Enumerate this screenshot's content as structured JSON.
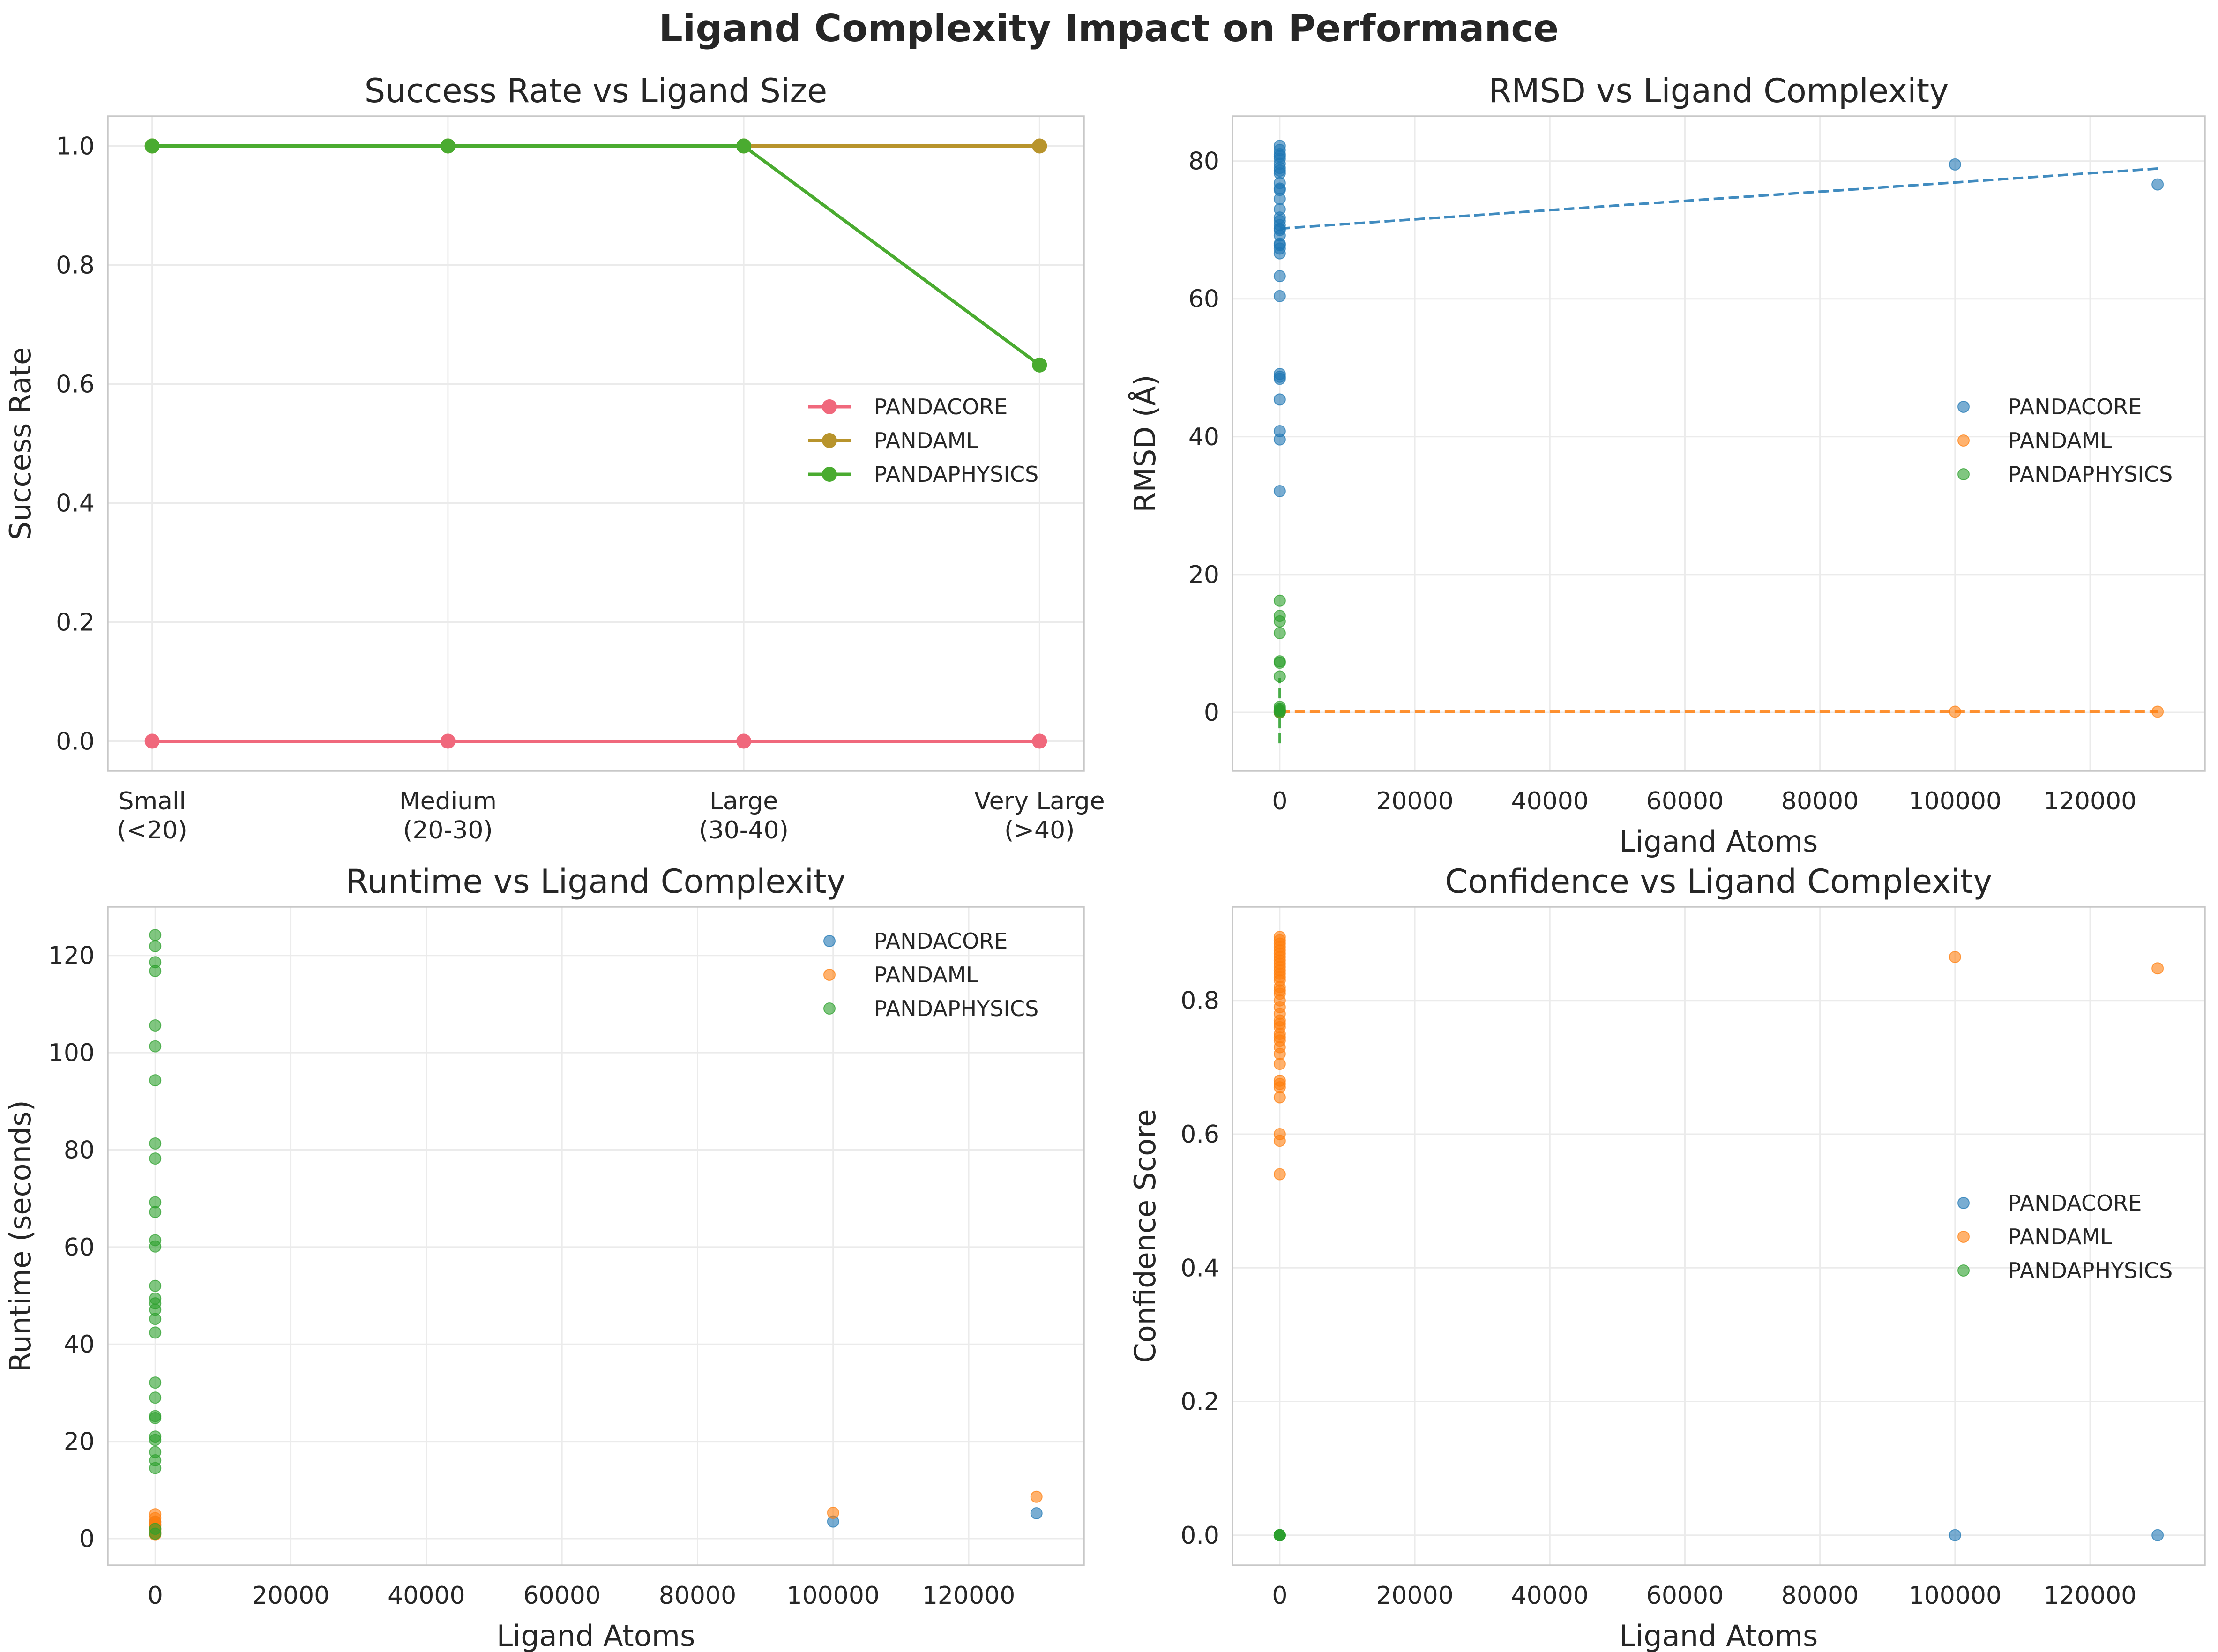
{
  "title": "Ligand Complexity Impact on Performance",
  "colors": {
    "PANDACORE_line": "#f0687c",
    "PANDAML_line": "#b8942c",
    "PANDAPHYSICS_line": "#4aab30",
    "PANDACORE": "#1f77b4",
    "PANDAML": "#ff7f0e",
    "PANDAPHYSICS": "#2ca02c"
  },
  "chart_data": [
    {
      "type": "line",
      "title": "Success Rate vs Ligand Size",
      "xlabel": "",
      "ylabel": "Success Rate",
      "categories": [
        "Small\n(<20)",
        "Medium\n(20-30)",
        "Large\n(30-40)",
        "Very Large\n(>40)"
      ],
      "ylim": [
        -0.05,
        1.05
      ],
      "yticks": [
        0.0,
        0.2,
        0.4,
        0.6,
        0.8,
        1.0
      ],
      "ytick_labels": [
        "0.0",
        "0.2",
        "0.4",
        "0.6",
        "0.8",
        "1.0"
      ],
      "grid": true,
      "legend": "center-right",
      "series": [
        {
          "name": "PANDACORE",
          "color_key": "PANDACORE_line",
          "values": [
            0.0,
            0.0,
            0.0,
            0.0
          ]
        },
        {
          "name": "PANDAML",
          "color_key": "PANDAML_line",
          "values": [
            1.0,
            1.0,
            1.0,
            1.0
          ]
        },
        {
          "name": "PANDAPHYSICS",
          "color_key": "PANDAPHYSICS_line",
          "values": [
            1.0,
            1.0,
            1.0,
            0.632
          ]
        }
      ]
    },
    {
      "type": "scatter",
      "title": "RMSD vs Ligand Complexity",
      "xlabel": "Ligand Atoms",
      "ylabel": "RMSD (Å)",
      "xlim": [
        -7000,
        137000
      ],
      "ylim": [
        -8.5,
        86.5
      ],
      "xticks": [
        0,
        20000,
        40000,
        60000,
        80000,
        100000,
        120000
      ],
      "xtick_labels": [
        "0",
        "20000",
        "40000",
        "60000",
        "80000",
        "100000",
        "120000"
      ],
      "yticks": [
        0,
        20,
        40,
        60,
        80
      ],
      "ytick_labels": [
        "0",
        "20",
        "40",
        "60",
        "80"
      ],
      "grid": true,
      "legend": "center-right",
      "series": [
        {
          "name": "PANDACORE",
          "color_key": "PANDACORE",
          "x": [
            0,
            0,
            0,
            0,
            0,
            0,
            0,
            0,
            0,
            0,
            0,
            0,
            0,
            0,
            0,
            0,
            0,
            0,
            0,
            0,
            0,
            0,
            0,
            0,
            0,
            0,
            0,
            0,
            0,
            0,
            0,
            0,
            0,
            100000,
            130000
          ],
          "y": [
            82.2,
            81.6,
            81.0,
            80.3,
            79.6,
            79.0,
            78.2,
            76.8,
            76.0,
            74.5,
            73.0,
            71.3,
            70.7,
            70.0,
            69.2,
            68.0,
            67.3,
            66.6,
            63.3,
            60.4,
            49.1,
            48.7,
            48.4,
            45.4,
            40.8,
            39.6,
            32.1,
            80.7,
            78.6,
            75.8,
            71.8,
            70.2,
            67.8,
            79.5,
            76.6
          ],
          "trend": {
            "x": [
              0,
              130000
            ],
            "y": [
              70.2,
              78.9
            ]
          }
        },
        {
          "name": "PANDAML",
          "color_key": "PANDAML",
          "x": [
            0,
            0,
            0,
            0,
            100000,
            130000
          ],
          "y": [
            0.1,
            0.2,
            0.0,
            0.1,
            0.1,
            0.1
          ],
          "trend": {
            "x": [
              0,
              130000
            ],
            "y": [
              0.1,
              0.1
            ]
          }
        },
        {
          "name": "PANDAPHYSICS",
          "color_key": "PANDAPHYSICS",
          "x": [
            0,
            0,
            0,
            0,
            0,
            0,
            0,
            0,
            0,
            0,
            0,
            0
          ],
          "y": [
            16.2,
            14.0,
            13.2,
            11.5,
            7.4,
            7.2,
            5.2,
            0.8,
            0.5,
            0.3,
            0.2,
            0.0
          ],
          "trend": {
            "x": [
              0,
              0
            ],
            "y": [
              -4.5,
              5.0
            ]
          }
        }
      ]
    },
    {
      "type": "scatter",
      "title": "Runtime vs Ligand Complexity",
      "xlabel": "Ligand Atoms",
      "ylabel": "Runtime (seconds)",
      "xlim": [
        -7000,
        137000
      ],
      "ylim": [
        -5.5,
        130
      ],
      "xticks": [
        0,
        20000,
        40000,
        60000,
        80000,
        100000,
        120000
      ],
      "xtick_labels": [
        "0",
        "20000",
        "40000",
        "60000",
        "80000",
        "100000",
        "120000"
      ],
      "yticks": [
        0,
        20,
        40,
        60,
        80,
        100,
        120
      ],
      "ytick_labels": [
        "0",
        "20",
        "40",
        "60",
        "80",
        "100",
        "120"
      ],
      "grid": true,
      "legend": "top-right",
      "series": [
        {
          "name": "PANDACORE",
          "color_key": "PANDACORE",
          "x": [
            0,
            0,
            0,
            0,
            100000,
            130000
          ],
          "y": [
            1.2,
            2.0,
            2.8,
            3.4,
            3.5,
            5.2
          ]
        },
        {
          "name": "PANDAML",
          "color_key": "PANDAML",
          "x": [
            0,
            0,
            0,
            0,
            0,
            0,
            0,
            0,
            0,
            0,
            0,
            100000,
            130000
          ],
          "y": [
            0.8,
            1.0,
            1.3,
            1.6,
            1.9,
            2.2,
            2.6,
            3.0,
            3.5,
            4.2,
            5.0,
            5.3,
            8.6
          ]
        },
        {
          "name": "PANDAPHYSICS",
          "color_key": "PANDAPHYSICS",
          "x": [
            0,
            0,
            0,
            0,
            0,
            0,
            0,
            0,
            0,
            0,
            0,
            0,
            0,
            0,
            0,
            0,
            0,
            0,
            0,
            0,
            0,
            0,
            0,
            0,
            0,
            0,
            0,
            0,
            0,
            0
          ],
          "y": [
            124.2,
            121.9,
            118.6,
            116.8,
            105.6,
            101.3,
            94.3,
            81.3,
            78.2,
            69.2,
            67.2,
            61.4,
            60.1,
            52.0,
            49.4,
            48.4,
            47.1,
            45.2,
            42.4,
            32.1,
            29.0,
            25.2,
            24.8,
            21.0,
            20.3,
            17.8,
            16.1,
            14.5,
            2.0,
            1.0
          ]
        }
      ]
    },
    {
      "type": "scatter",
      "title": "Confidence vs Ligand Complexity",
      "xlabel": "Ligand Atoms",
      "ylabel": "Confidence Score",
      "xlim": [
        -7000,
        137000
      ],
      "ylim": [
        -0.045,
        0.94
      ],
      "xticks": [
        0,
        20000,
        40000,
        60000,
        80000,
        100000,
        120000
      ],
      "xtick_labels": [
        "0",
        "20000",
        "40000",
        "60000",
        "80000",
        "100000",
        "120000"
      ],
      "yticks": [
        0.0,
        0.2,
        0.4,
        0.6,
        0.8
      ],
      "ytick_labels": [
        "0.0",
        "0.2",
        "0.4",
        "0.6",
        "0.8"
      ],
      "grid": true,
      "legend": "center-right",
      "series": [
        {
          "name": "PANDACORE",
          "color_key": "PANDACORE",
          "x": [
            0,
            0,
            100000,
            130000
          ],
          "y": [
            0.0,
            0.0,
            0.0,
            0.0
          ]
        },
        {
          "name": "PANDAML",
          "color_key": "PANDAML",
          "x": [
            0,
            0,
            0,
            0,
            0,
            0,
            0,
            0,
            0,
            0,
            0,
            0,
            0,
            0,
            0,
            0,
            0,
            0,
            0,
            0,
            0,
            0,
            0,
            0,
            0,
            0,
            0,
            0,
            0,
            0,
            0,
            0,
            0,
            0,
            0,
            0,
            100000,
            130000
          ],
          "y": [
            0.895,
            0.89,
            0.885,
            0.88,
            0.875,
            0.87,
            0.865,
            0.86,
            0.855,
            0.85,
            0.845,
            0.84,
            0.835,
            0.83,
            0.82,
            0.81,
            0.8,
            0.79,
            0.78,
            0.77,
            0.76,
            0.75,
            0.745,
            0.74,
            0.73,
            0.72,
            0.705,
            0.68,
            0.675,
            0.67,
            0.655,
            0.6,
            0.59,
            0.54,
            0.815,
            0.765,
            0.865,
            0.848
          ]
        },
        {
          "name": "PANDAPHYSICS",
          "color_key": "PANDAPHYSICS",
          "x": [
            0,
            0,
            0,
            0
          ],
          "y": [
            0.0,
            0.0,
            0.0,
            0.0
          ]
        }
      ]
    }
  ]
}
